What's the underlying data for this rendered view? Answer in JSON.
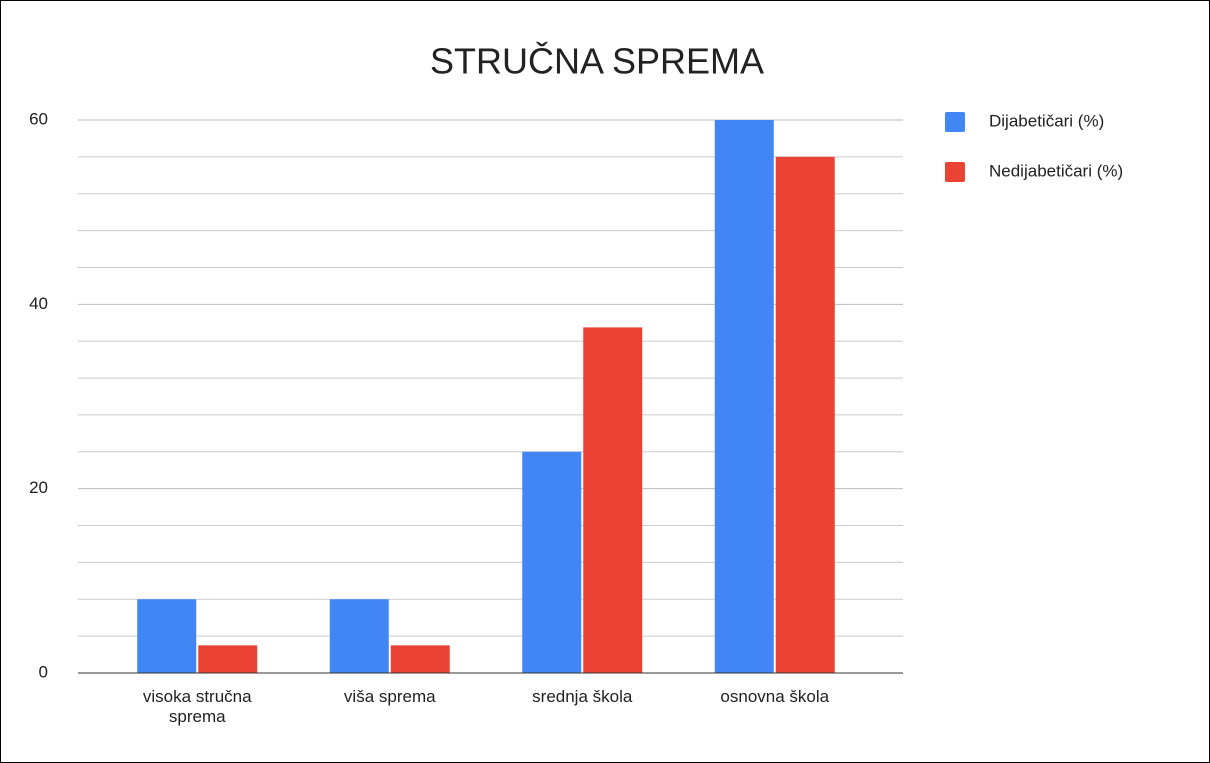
{
  "chart_data": {
    "type": "bar",
    "title": "STRUČNA SPREMA",
    "categories": [
      "visoka stručna sprema",
      "viša sprema",
      "srednja škola",
      "osnovna škola"
    ],
    "series": [
      {
        "name": "Dijabetičari (%)",
        "color": "#4285f4",
        "values": [
          8,
          8,
          24,
          60
        ]
      },
      {
        "name": "Nedijabetičari (%)",
        "color": "#ea4335",
        "values": [
          3,
          3,
          37.5,
          56
        ]
      }
    ],
    "ylim": [
      0,
      60
    ],
    "yticks": [
      0,
      20,
      40,
      60
    ],
    "grid": true,
    "minor_grid_step": 4,
    "legend": "right"
  }
}
